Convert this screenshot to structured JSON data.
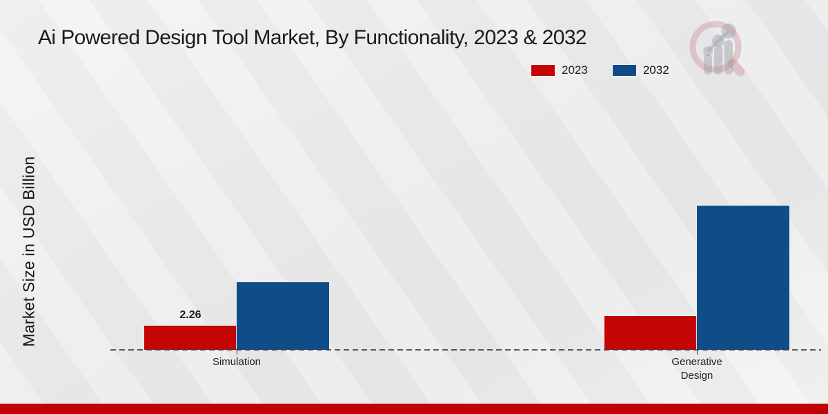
{
  "header": {
    "title": "Ai Powered Design Tool Market, By Functionality, 2023 & 2032"
  },
  "chart_data": {
    "type": "bar",
    "title": "Ai Powered Design Tool Market, By Functionality, 2023 & 2032",
    "categories": [
      "Simulation",
      "Generative Design"
    ],
    "series": [
      {
        "name": "2023",
        "color": "#c30505",
        "values": [
          2.26,
          3.16
        ]
      },
      {
        "name": "2032",
        "color": "#0f4d88",
        "values": [
          6.32,
          13.5
        ]
      }
    ],
    "value_labels": [
      {
        "series_index": 0,
        "category_index": 0,
        "text": "2.26"
      }
    ],
    "xlabel": "",
    "ylabel": "Market Size in USD Billion",
    "ylim": [
      0,
      14
    ],
    "grid": false,
    "legend_position": "top-right",
    "baseline_style": "dashed"
  },
  "watermark": {
    "icon": "magnifier-bar-chart-logo",
    "ring_color": "rgba(201,125,133,0.35)",
    "bars_color": "rgba(158,160,170,0.45)"
  },
  "footer": {
    "accent_color": "#c00404"
  }
}
